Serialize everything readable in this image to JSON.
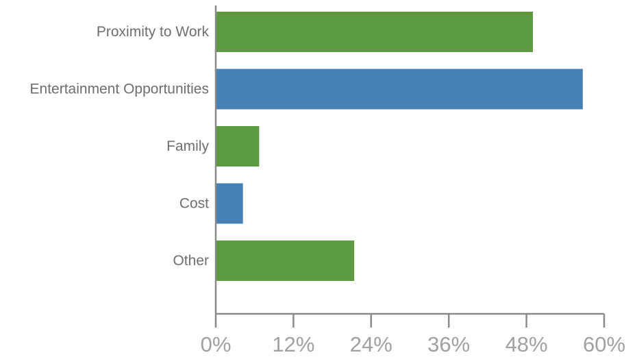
{
  "chart_data": {
    "type": "bar",
    "orientation": "horizontal",
    "categories": [
      "Proximity to Work",
      "Entertainment Opportunities",
      "Family",
      "Cost",
      "Other"
    ],
    "values": [
      49,
      56.7,
      6.7,
      4.2,
      21.4
    ],
    "value_unit": "%",
    "colors": [
      "#5d9a41",
      "#4680b4",
      "#5d9a41",
      "#4680b4",
      "#5d9a41"
    ],
    "xlim": [
      0,
      60
    ],
    "xticks": [
      0,
      12,
      24,
      36,
      48,
      60
    ],
    "xtick_labels": [
      "0%",
      "12%",
      "24%",
      "36%",
      "48%",
      "60%"
    ],
    "title": "",
    "xlabel": "",
    "ylabel": "",
    "grid": false,
    "legend": "none"
  }
}
